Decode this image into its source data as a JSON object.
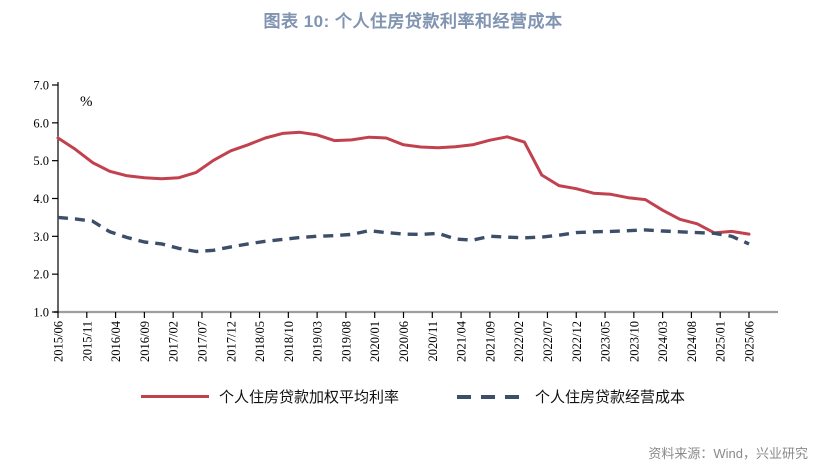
{
  "title": "图表 10: 个人住房贷款利率和经营成本",
  "source": "资料来源：Wind，兴业研究",
  "colors": {
    "title": "#8094B2",
    "source_text": "#8A8A8A",
    "x_axis_line": "#9E9E9E",
    "axis_ink": "#000000",
    "rate_line": "#C2414F",
    "cost_line": "#3C4E68"
  },
  "chart_data": {
    "type": "line",
    "title": "图表 10: 个人住房贷款利率和经营成本",
    "unit_label": "%",
    "grid": "off",
    "legend_position": "bottom",
    "ylim": [
      1.0,
      7.0
    ],
    "y_ticks": [
      "7.0",
      "6.0",
      "5.0",
      "4.0",
      "3.0",
      "2.0",
      "1.0"
    ],
    "x_tick_labels": [
      "2015/06",
      "2015/11",
      "2016/04",
      "2016/09",
      "2017/02",
      "2017/07",
      "2017/12",
      "2018/05",
      "2018/10",
      "2019/03",
      "2019/08",
      "2020/01",
      "2020/06",
      "2020/11",
      "2021/04",
      "2021/09",
      "2022/02",
      "2022/07",
      "2022/12",
      "2023/05",
      "2023/10",
      "2024/03",
      "2024/08",
      "2025/01",
      "2025/06"
    ],
    "x": [
      "2015/06",
      "2015/09",
      "2015/12",
      "2016/03",
      "2016/06",
      "2016/09",
      "2016/12",
      "2017/03",
      "2017/06",
      "2017/09",
      "2017/12",
      "2018/03",
      "2018/06",
      "2018/09",
      "2018/12",
      "2019/03",
      "2019/06",
      "2019/09",
      "2019/12",
      "2020/03",
      "2020/06",
      "2020/09",
      "2020/12",
      "2021/03",
      "2021/06",
      "2021/09",
      "2021/12",
      "2022/03",
      "2022/06",
      "2022/09",
      "2022/12",
      "2023/03",
      "2023/06",
      "2023/09",
      "2023/12",
      "2024/03",
      "2024/06",
      "2024/09",
      "2024/12",
      "2025/03",
      "2025/06"
    ],
    "series": [
      {
        "name": "个人住房贷款加权平均利率",
        "style": "solid",
        "color": "#C2414F",
        "values": [
          5.6,
          5.3,
          4.95,
          4.72,
          4.6,
          4.55,
          4.52,
          4.55,
          4.69,
          5.01,
          5.26,
          5.42,
          5.6,
          5.72,
          5.75,
          5.68,
          5.53,
          5.55,
          5.62,
          5.6,
          5.42,
          5.36,
          5.34,
          5.37,
          5.42,
          5.54,
          5.63,
          5.49,
          4.62,
          4.34,
          4.26,
          4.14,
          4.11,
          4.02,
          3.97,
          3.69,
          3.45,
          3.33,
          3.09,
          3.13,
          3.06
        ]
      },
      {
        "name": "个人住房贷款经营成本",
        "style": "dashed",
        "color": "#3C4E68",
        "values": [
          3.5,
          3.46,
          3.4,
          3.12,
          2.97,
          2.85,
          2.8,
          2.68,
          2.6,
          2.63,
          2.72,
          2.8,
          2.87,
          2.92,
          2.97,
          3.0,
          3.02,
          3.05,
          3.15,
          3.1,
          3.06,
          3.05,
          3.08,
          2.93,
          2.9,
          3.0,
          2.98,
          2.96,
          2.98,
          3.03,
          3.1,
          3.12,
          3.13,
          3.15,
          3.17,
          3.14,
          3.12,
          3.1,
          3.08,
          3.0,
          2.8
        ]
      }
    ]
  }
}
